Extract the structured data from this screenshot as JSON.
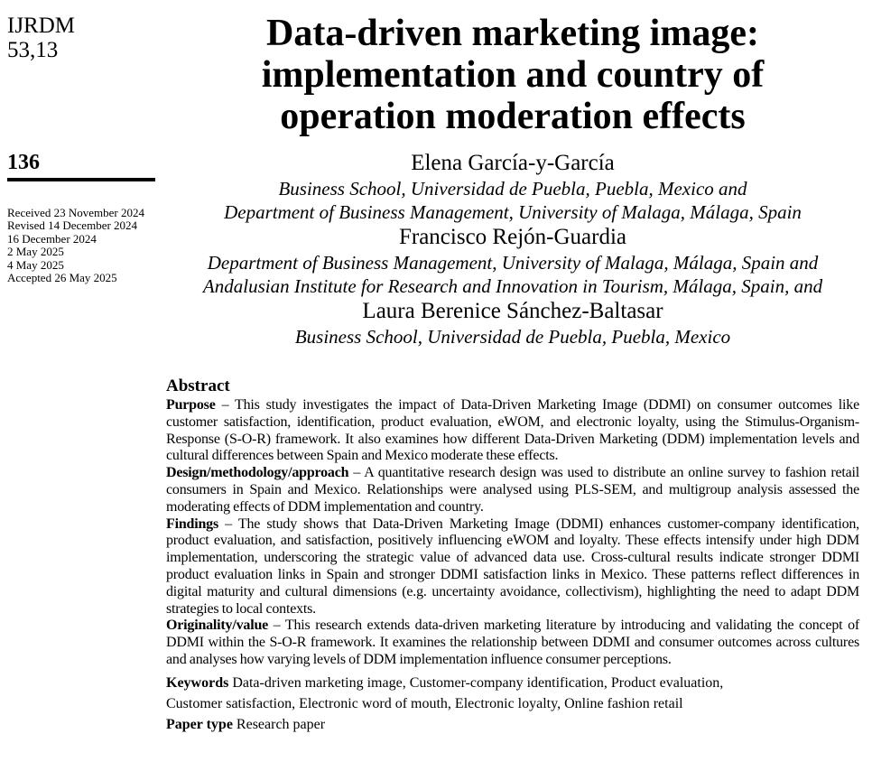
{
  "journal": {
    "name": "IJRDM",
    "volume": "53,13"
  },
  "page_number": "136",
  "history": [
    "Received 23 November 2024",
    "Revised 14 December 2024",
    "16 December 2024",
    "2 May 2025",
    "4 May 2025",
    "Accepted 26 May 2025"
  ],
  "title_lines": [
    "Data-driven marketing image:",
    "implementation and country of",
    "operation moderation effects"
  ],
  "authors": [
    {
      "name": "Elena García-y-García",
      "affiliation_lines": [
        "Business School, Universidad de Puebla, Puebla, Mexico and",
        "Department of Business Management, University of Malaga, Málaga, Spain"
      ]
    },
    {
      "name": "Francisco Rejón-Guardia",
      "affiliation_lines": [
        "Department of Business Management, University of Malaga, Málaga, Spain and",
        "Andalusian Institute for Research and Innovation in Tourism, Málaga, Spain, and"
      ]
    },
    {
      "name": "Laura Berenice Sánchez-Baltasar",
      "affiliation_lines": [
        "Business School, Universidad de Puebla, Puebla, Mexico"
      ]
    }
  ],
  "abstract": {
    "heading": "Abstract",
    "sections": [
      {
        "label": "Purpose",
        "text": " – This study investigates the impact of Data-Driven Marketing Image (DDMI) on consumer outcomes like customer satisfaction, identification, product evaluation, eWOM, and electronic loyalty, using the Stimulus-Organism-Response (S-O-R) framework. It also examines how different Data-Driven Marketing (DDM) implementation levels and cultural differences between Spain and Mexico moderate these effects."
      },
      {
        "label": "Design/methodology/approach",
        "text": " – A quantitative research design was used to distribute an online survey to fashion retail consumers in Spain and Mexico. Relationships were analysed using PLS-SEM, and multigroup analysis assessed the moderating effects of DDM implementation and country."
      },
      {
        "label": "Findings",
        "text": " – The study shows that Data-Driven Marketing Image (DDMI) enhances customer-company identification, product evaluation, and satisfaction, positively influencing eWOM and loyalty. These effects intensify under high DDM implementation, underscoring the strategic value of advanced data use. Cross-cultural results indicate stronger DDMI product evaluation links in Spain and stronger DDMI satisfaction links in Mexico. These patterns reflect differences in digital maturity and cultural dimensions (e.g. uncertainty avoidance, collectivism), highlighting the need to adapt DDM strategies to local contexts."
      },
      {
        "label": "Originality/value",
        "text": " – This research extends data-driven marketing literature by introducing and validating the concept of DDMI within the S-O-R framework. It examines the relationship between DDMI and consumer outcomes across cultures and analyses how varying levels of DDM implementation influence consumer perceptions."
      }
    ],
    "keywords": {
      "label": "Keywords",
      "lines": [
        " Data-driven marketing image, Customer-company identification, Product evaluation,",
        "Customer satisfaction, Electronic word of mouth, Electronic loyalty, Online fashion retail"
      ]
    },
    "paper_type": {
      "label": "Paper type",
      "text": " Research paper"
    }
  }
}
